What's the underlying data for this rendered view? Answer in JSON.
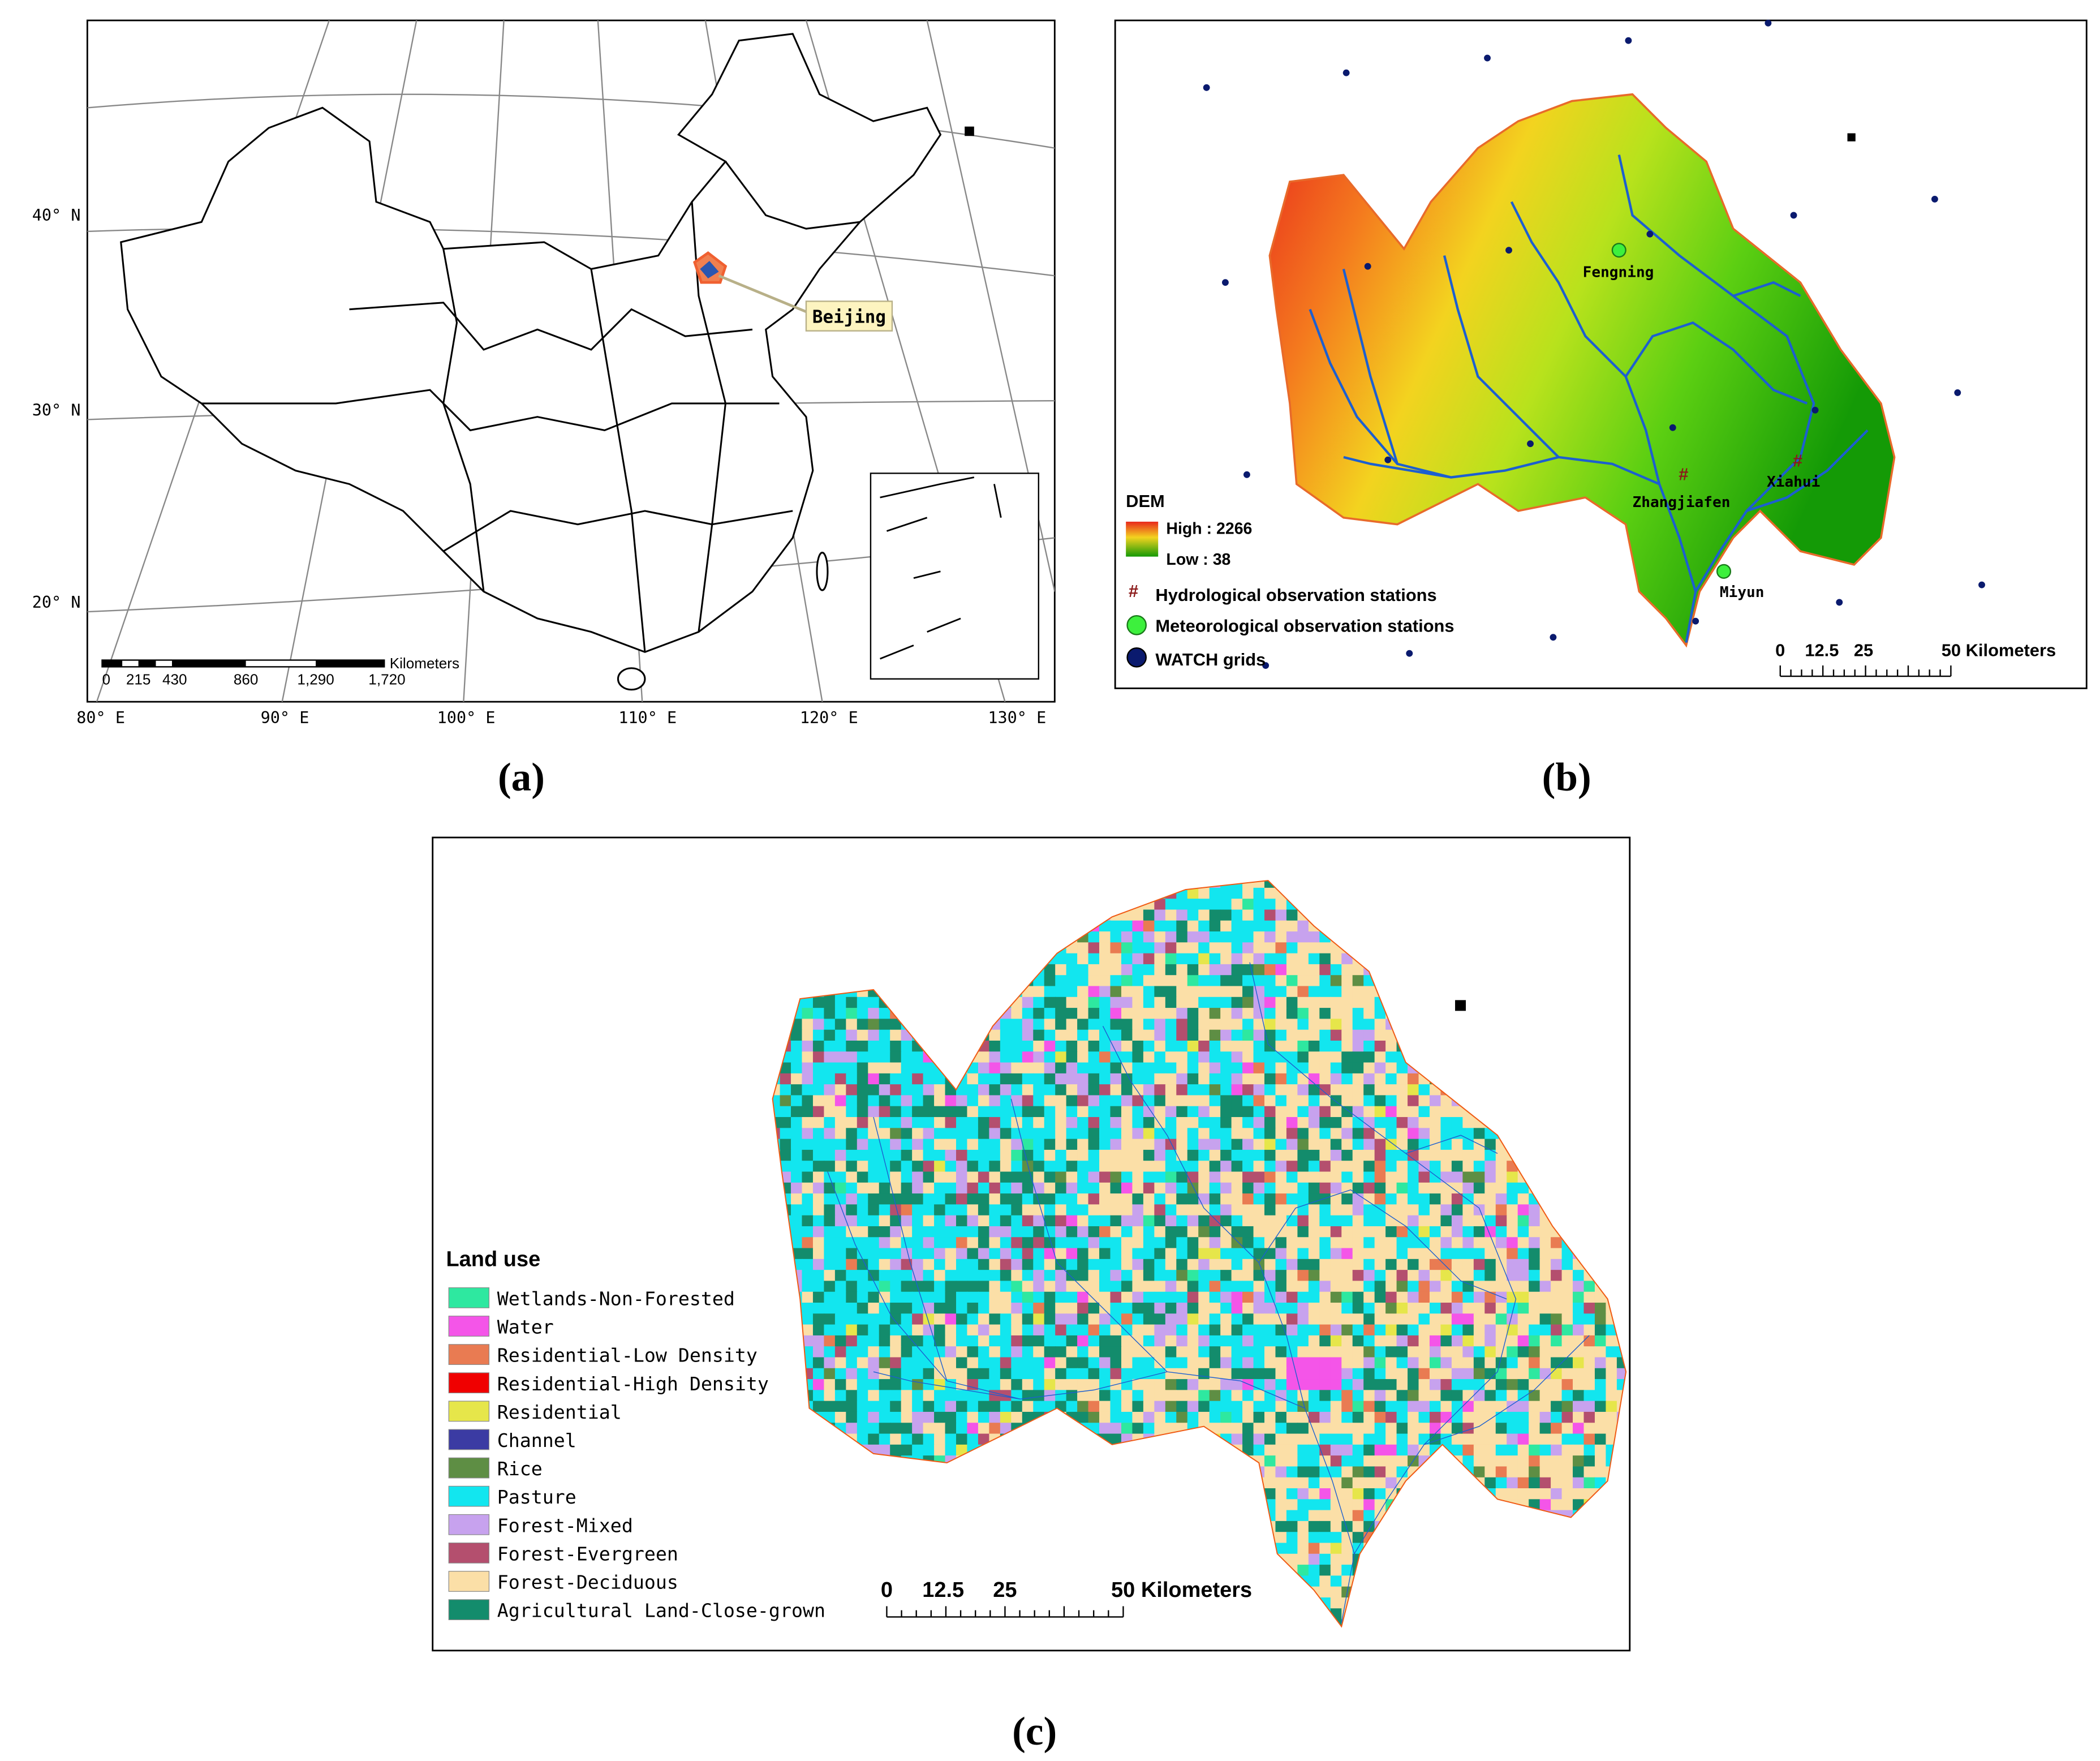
{
  "panels": [
    {
      "label": "(a)",
      "lat_labels": [
        "40° N",
        "30° N",
        "20° N"
      ],
      "lon_labels": [
        "80° E",
        "90° E",
        "100° E",
        "110° E",
        "120° E",
        "130° E"
      ],
      "scale_unit": "Kilometers",
      "scale_ticks": [
        "0",
        "215",
        "430",
        "860",
        "1,290",
        "1,720"
      ],
      "place": "Beijing"
    },
    {
      "label": "(b)",
      "legend_title": "DEM",
      "dem_high": "High : 2266",
      "dem_low": "Low : 38",
      "legend": [
        "Hydrological observation stations",
        "Meteorological observation stations",
        "WATCH grids"
      ],
      "stations": [
        "Fengning",
        "Zhangjiafen",
        "Xiahui",
        "Miyun"
      ],
      "scale_ticks": [
        "0",
        "12.5",
        "25",
        "50 Kilometers"
      ]
    },
    {
      "label": "(c)",
      "legend_title": "Land use",
      "classes": [
        {
          "name": "Wetlands-Non-Forested",
          "color": "#2ee8a0"
        },
        {
          "name": "Water",
          "color": "#f455e8"
        },
        {
          "name": "Residential-Low Density",
          "color": "#e97b52"
        },
        {
          "name": "Residential-High Density",
          "color": "#f00000"
        },
        {
          "name": "Residential",
          "color": "#e6e64a"
        },
        {
          "name": "Channel",
          "color": "#3b3ba3"
        },
        {
          "name": "Rice",
          "color": "#5e8e44"
        },
        {
          "name": "Pasture",
          "color": "#12e6ef"
        },
        {
          "name": "Forest-Mixed",
          "color": "#c7a2ee"
        },
        {
          "name": "Forest-Evergreen",
          "color": "#b44f6e"
        },
        {
          "name": "Forest-Deciduous",
          "color": "#fbdfa7"
        },
        {
          "name": "Agricultural Land-Close-grown",
          "color": "#138c6c"
        }
      ],
      "scale_ticks": [
        "0",
        "12.5",
        "25",
        "50 Kilometers"
      ]
    }
  ]
}
